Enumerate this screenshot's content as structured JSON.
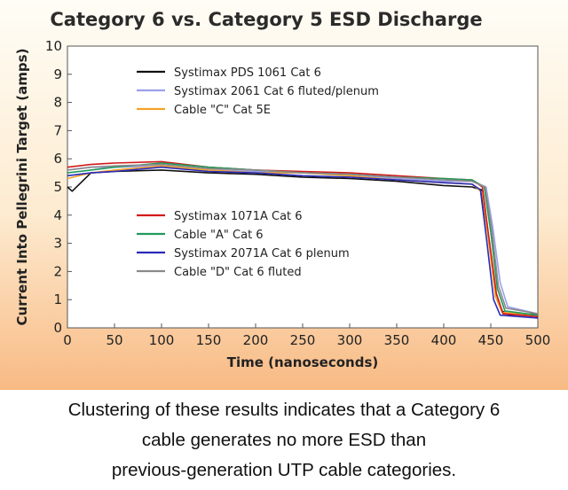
{
  "caption_lines": [
    "Clustering of these results indicates that a Category 6",
    "cable generates no more ESD than",
    "previous-generation UTP cable categories."
  ],
  "chart_data": {
    "type": "line",
    "title": "Category 6 vs. Category 5 ESD Discharge",
    "xlabel": "Time (nanoseconds)",
    "ylabel": "Current Into Pellegrini Target (amps)",
    "xlim": [
      0,
      500
    ],
    "ylim": [
      0,
      10
    ],
    "xticks": [
      0,
      50,
      100,
      150,
      200,
      250,
      300,
      350,
      400,
      450,
      500
    ],
    "yticks": [
      0,
      1,
      2,
      3,
      4,
      5,
      6,
      7,
      8,
      9,
      10
    ],
    "grid": false,
    "legend_placement": "inside, upper-left and middle-left",
    "series": [
      {
        "name": "Systimax PDS 1061 Cat 6",
        "color": "#111111",
        "x": [
          0,
          5,
          25,
          50,
          100,
          150,
          200,
          250,
          300,
          350,
          400,
          430,
          440,
          447,
          455,
          462,
          470,
          500
        ],
        "y": [
          5.0,
          4.85,
          5.5,
          5.55,
          5.6,
          5.5,
          5.45,
          5.35,
          5.3,
          5.2,
          5.05,
          5.0,
          4.9,
          3.3,
          1.3,
          0.6,
          0.45,
          0.5
        ]
      },
      {
        "name": "Systimax 2061 Cat 6 fluted/plenum",
        "color": "#9aa0ee",
        "x": [
          0,
          25,
          50,
          100,
          150,
          200,
          250,
          300,
          350,
          400,
          430,
          445,
          452,
          460,
          468,
          500
        ],
        "y": [
          5.6,
          5.7,
          5.7,
          5.75,
          5.6,
          5.55,
          5.5,
          5.45,
          5.3,
          5.2,
          5.2,
          5.0,
          3.6,
          1.6,
          0.75,
          0.5
        ]
      },
      {
        "name": "Cable \"C\" Cat 5E",
        "color": "#f3a22a",
        "x": [
          0,
          25,
          50,
          100,
          150,
          200,
          250,
          300,
          350,
          400,
          430,
          441,
          448,
          455,
          462,
          500
        ],
        "y": [
          5.3,
          5.5,
          5.6,
          5.75,
          5.6,
          5.5,
          5.5,
          5.4,
          5.25,
          5.15,
          5.1,
          4.8,
          3.0,
          1.1,
          0.55,
          0.45
        ]
      },
      {
        "name": "Systimax 1071A Cat 6",
        "color": "#d11a1a",
        "x": [
          0,
          25,
          50,
          100,
          150,
          200,
          250,
          300,
          350,
          400,
          430,
          441,
          448,
          456,
          463,
          500
        ],
        "y": [
          5.7,
          5.8,
          5.85,
          5.9,
          5.7,
          5.6,
          5.55,
          5.5,
          5.4,
          5.3,
          5.25,
          5.0,
          3.2,
          1.2,
          0.5,
          0.4
        ]
      },
      {
        "name": "Cable \"A\" Cat 6",
        "color": "#1f9a5a",
        "x": [
          0,
          25,
          50,
          100,
          150,
          200,
          250,
          300,
          350,
          400,
          430,
          443,
          450,
          457,
          465,
          500
        ],
        "y": [
          5.5,
          5.6,
          5.7,
          5.85,
          5.7,
          5.6,
          5.5,
          5.45,
          5.35,
          5.3,
          5.25,
          5.0,
          3.4,
          1.4,
          0.6,
          0.45
        ]
      },
      {
        "name": "Systimax 2071A Cat 6 plenum",
        "color": "#2a2ab8",
        "x": [
          0,
          25,
          50,
          100,
          150,
          200,
          250,
          300,
          350,
          400,
          430,
          439,
          446,
          453,
          460,
          500
        ],
        "y": [
          5.4,
          5.5,
          5.55,
          5.7,
          5.55,
          5.5,
          5.4,
          5.35,
          5.25,
          5.15,
          5.1,
          4.9,
          3.0,
          1.0,
          0.45,
          0.35
        ]
      },
      {
        "name": "Cable \"D\" Cat 6 fluted",
        "color": "#8a8a8a",
        "x": [
          0,
          25,
          50,
          100,
          150,
          200,
          250,
          300,
          350,
          400,
          430,
          444,
          451,
          458,
          466,
          500
        ],
        "y": [
          5.6,
          5.7,
          5.75,
          5.8,
          5.65,
          5.6,
          5.5,
          5.45,
          5.35,
          5.25,
          5.2,
          5.0,
          3.5,
          1.5,
          0.7,
          0.5
        ]
      }
    ],
    "legend_groups": [
      [
        0,
        1,
        2
      ],
      [
        3,
        4,
        5,
        6
      ]
    ]
  }
}
